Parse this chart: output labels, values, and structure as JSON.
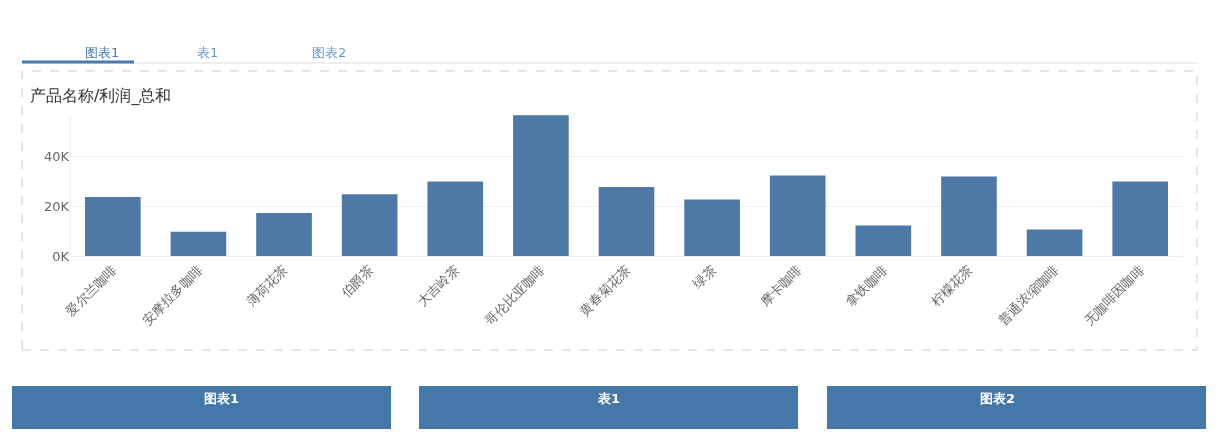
{
  "chart_data": {
    "type": "bar",
    "title": "产品名称/利润_总和",
    "categories": [
      "爱尔兰咖啡",
      "安摩拉多咖啡",
      "薄荷花茶",
      "伯爵茶",
      "大吉岭茶",
      "哥伦比亚咖啡",
      "黄春菊花茶",
      "绿茶",
      "摩卡咖啡",
      "拿铁咖啡",
      "柠檬花茶",
      "普通浓缩咖啡",
      "无咖啡因咖啡"
    ],
    "values": [
      23600,
      9700,
      17200,
      24700,
      29800,
      56300,
      27600,
      22600,
      32200,
      12200,
      31800,
      10600,
      29800
    ],
    "color": "#4e79a7",
    "ylim": [
      0,
      56400
    ],
    "yticks": [
      {
        "value": 0,
        "label": "0K"
      },
      {
        "value": 20000,
        "label": "20K"
      },
      {
        "value": 40000,
        "label": "40K"
      }
    ],
    "grid": "y",
    "annotations": [
      "图表1",
      "表1",
      "图表2",
      "图表1",
      "表1",
      "图表2"
    ]
  }
}
